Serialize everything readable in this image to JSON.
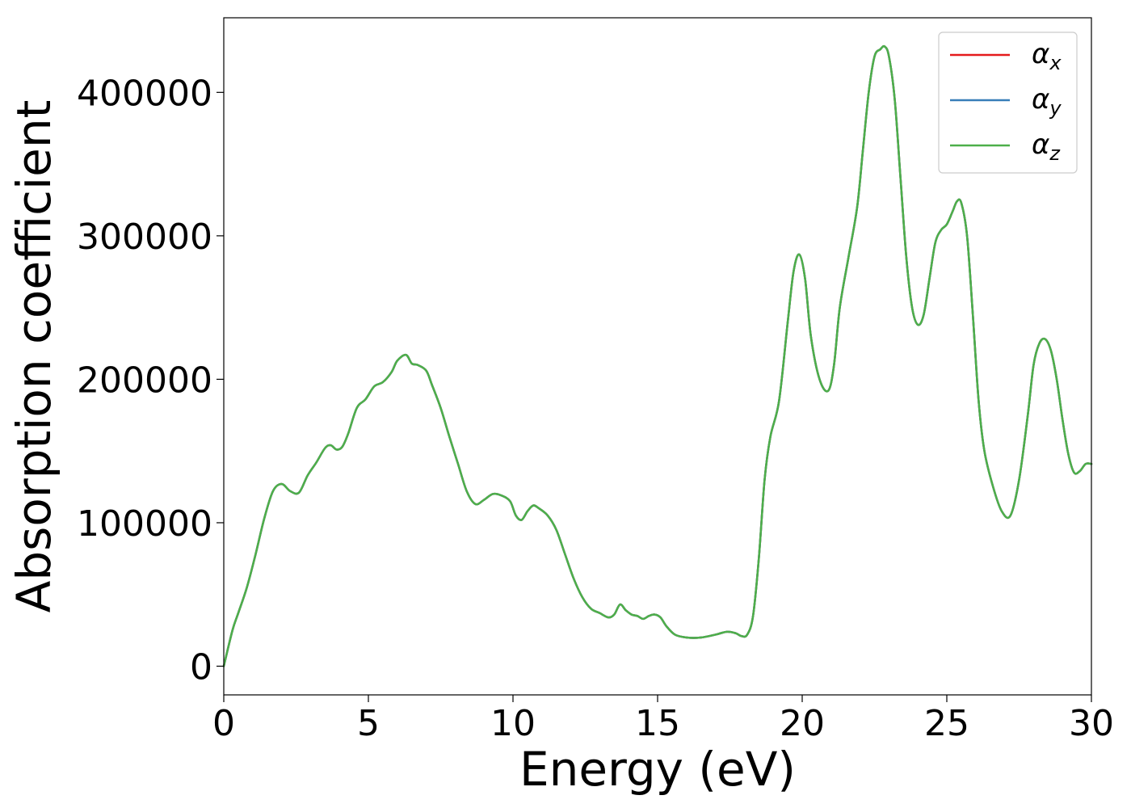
{
  "chart_data": {
    "type": "line",
    "title": "",
    "xlabel": "Energy (eV)",
    "ylabel": "Absorption coefficient",
    "xlim": [
      0,
      30
    ],
    "ylim": [
      -20000,
      452000
    ],
    "xticks": [
      0,
      5,
      10,
      15,
      20,
      25,
      30
    ],
    "xtick_labels": [
      "0",
      "5",
      "10",
      "15",
      "20",
      "25",
      "30"
    ],
    "yticks": [
      0,
      100000,
      200000,
      300000,
      400000
    ],
    "ytick_labels": [
      "0",
      "100000",
      "200000",
      "300000",
      "400000"
    ],
    "grid": false,
    "legend_position": "top-right",
    "x": [
      0,
      0.3,
      0.5,
      0.8,
      1.1,
      1.4,
      1.7,
      2.0,
      2.3,
      2.6,
      2.9,
      3.2,
      3.5,
      3.7,
      3.9,
      4.1,
      4.3,
      4.6,
      4.9,
      5.2,
      5.5,
      5.8,
      6.0,
      6.3,
      6.5,
      6.7,
      7.0,
      7.2,
      7.5,
      7.8,
      8.1,
      8.4,
      8.7,
      9.0,
      9.3,
      9.6,
      9.9,
      10.1,
      10.3,
      10.5,
      10.7,
      10.9,
      11.2,
      11.5,
      11.8,
      12.1,
      12.4,
      12.7,
      13.0,
      13.3,
      13.5,
      13.7,
      13.9,
      14.1,
      14.3,
      14.5,
      14.7,
      14.9,
      15.1,
      15.3,
      15.6,
      16.0,
      16.5,
      17.0,
      17.4,
      17.7,
      17.9,
      18.1,
      18.3,
      18.5,
      18.7,
      18.9,
      19.2,
      19.5,
      19.7,
      19.9,
      20.1,
      20.3,
      20.6,
      20.9,
      21.1,
      21.3,
      21.6,
      21.9,
      22.1,
      22.3,
      22.5,
      22.7,
      22.85,
      23.0,
      23.2,
      23.4,
      23.6,
      23.8,
      24.0,
      24.2,
      24.4,
      24.6,
      24.8,
      25.0,
      25.2,
      25.35,
      25.5,
      25.7,
      25.9,
      26.1,
      26.3,
      26.6,
      26.9,
      27.2,
      27.5,
      27.8,
      28.0,
      28.2,
      28.4,
      28.6,
      28.8,
      29.0,
      29.2,
      29.4,
      29.6,
      29.8,
      30.0
    ],
    "series": [
      {
        "name": "α_x",
        "color": "#e41a1c",
        "values": [
          0,
          25000,
          37000,
          55000,
          78000,
          103000,
          122000,
          127000,
          122000,
          121000,
          133000,
          142000,
          152000,
          154000,
          151000,
          153000,
          162000,
          180000,
          186000,
          195000,
          198000,
          205000,
          213000,
          217000,
          211000,
          210000,
          206000,
          196000,
          180000,
          160000,
          141000,
          122000,
          113000,
          116000,
          120000,
          119000,
          115000,
          105000,
          102000,
          108000,
          112000,
          110000,
          105000,
          95000,
          78000,
          61000,
          48000,
          40000,
          37000,
          34000,
          36000,
          43000,
          39000,
          36000,
          35000,
          33000,
          35000,
          36000,
          34000,
          28000,
          22000,
          20000,
          20000,
          22000,
          24000,
          23000,
          21000,
          22000,
          35000,
          75000,
          130000,
          160000,
          185000,
          240000,
          275000,
          287000,
          270000,
          230000,
          200000,
          192000,
          210000,
          250000,
          285000,
          320000,
          360000,
          400000,
          425000,
          430000,
          432000,
          425000,
          395000,
          340000,
          285000,
          250000,
          238000,
          245000,
          270000,
          295000,
          304000,
          308000,
          317000,
          324000,
          323000,
          300000,
          245000,
          185000,
          150000,
          125000,
          108000,
          105000,
          130000,
          175000,
          210000,
          225000,
          228000,
          220000,
          200000,
          172000,
          148000,
          135000,
          136000,
          141000,
          141000
        ]
      },
      {
        "name": "α_y",
        "color": "#377eb8",
        "values": [
          0,
          25000,
          37000,
          55000,
          78000,
          103000,
          122000,
          127000,
          122000,
          121000,
          133000,
          142000,
          152000,
          154000,
          151000,
          153000,
          162000,
          180000,
          186000,
          195000,
          198000,
          205000,
          213000,
          217000,
          211000,
          210000,
          206000,
          196000,
          180000,
          160000,
          141000,
          122000,
          113000,
          116000,
          120000,
          119000,
          115000,
          105000,
          102000,
          108000,
          112000,
          110000,
          105000,
          95000,
          78000,
          61000,
          48000,
          40000,
          37000,
          34000,
          36000,
          43000,
          39000,
          36000,
          35000,
          33000,
          35000,
          36000,
          34000,
          28000,
          22000,
          20000,
          20000,
          22000,
          24000,
          23000,
          21000,
          22000,
          35000,
          75000,
          130000,
          160000,
          185000,
          240000,
          275000,
          287000,
          270000,
          230000,
          200000,
          192000,
          210000,
          250000,
          285000,
          320000,
          360000,
          400000,
          425000,
          430000,
          432000,
          425000,
          395000,
          340000,
          285000,
          250000,
          238000,
          245000,
          270000,
          295000,
          304000,
          308000,
          317000,
          324000,
          323000,
          300000,
          245000,
          185000,
          150000,
          125000,
          108000,
          105000,
          130000,
          175000,
          210000,
          225000,
          228000,
          220000,
          200000,
          172000,
          148000,
          135000,
          136000,
          141000,
          141000
        ]
      },
      {
        "name": "α_z",
        "color": "#4daf4a",
        "values": [
          0,
          25000,
          37000,
          55000,
          78000,
          103000,
          122000,
          127000,
          122000,
          121000,
          133000,
          142000,
          152000,
          154000,
          151000,
          153000,
          162000,
          180000,
          186000,
          195000,
          198000,
          205000,
          213000,
          217000,
          211000,
          210000,
          206000,
          196000,
          180000,
          160000,
          141000,
          122000,
          113000,
          116000,
          120000,
          119000,
          115000,
          105000,
          102000,
          108000,
          112000,
          110000,
          105000,
          95000,
          78000,
          61000,
          48000,
          40000,
          37000,
          34000,
          36000,
          43000,
          39000,
          36000,
          35000,
          33000,
          35000,
          36000,
          34000,
          28000,
          22000,
          20000,
          20000,
          22000,
          24000,
          23000,
          21000,
          22000,
          35000,
          75000,
          130000,
          160000,
          185000,
          240000,
          275000,
          287000,
          270000,
          230000,
          200000,
          192000,
          210000,
          250000,
          285000,
          320000,
          360000,
          400000,
          425000,
          430000,
          432000,
          425000,
          395000,
          340000,
          285000,
          250000,
          238000,
          245000,
          270000,
          295000,
          304000,
          308000,
          317000,
          324000,
          323000,
          300000,
          245000,
          185000,
          150000,
          125000,
          108000,
          105000,
          130000,
          175000,
          210000,
          225000,
          228000,
          220000,
          200000,
          172000,
          148000,
          135000,
          136000,
          141000,
          141000
        ]
      }
    ]
  }
}
